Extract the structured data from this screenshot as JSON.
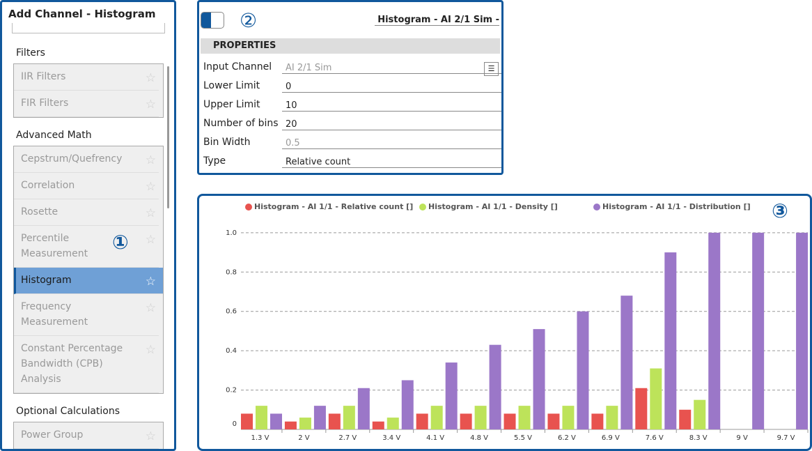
{
  "left_panel": {
    "title": "Add Channel - Histogram",
    "marker": "①",
    "selected_item": "Histogram",
    "groups": [
      {
        "title": "Filters",
        "items": [
          "IIR Filters",
          "FIR Filters"
        ]
      },
      {
        "title": "Advanced Math",
        "items": [
          "Cepstrum/Quefrency",
          "Correlation",
          "Rosette",
          "Percentile Measurement",
          "Histogram",
          "Frequency Measurement",
          "Constant Percentage Bandwidth (CPB) Analysis"
        ]
      },
      {
        "title": "Optional Calculations",
        "items": [
          "Power Group"
        ]
      }
    ]
  },
  "properties_panel": {
    "marker": "②",
    "header": "Histogram - AI 2/1 Sim -",
    "section": "PROPERTIES",
    "rows": [
      {
        "label": "Input Channel",
        "value": "AI 2/1 Sim",
        "disabled": true
      },
      {
        "label": "Lower Limit",
        "value": "0",
        "disabled": false
      },
      {
        "label": "Upper Limit",
        "value": "10",
        "disabled": false
      },
      {
        "label": "Number of bins",
        "value": "20",
        "disabled": false
      },
      {
        "label": "Bin Width",
        "value": "0.5",
        "disabled": true
      },
      {
        "label": "Type",
        "value": "Relative count",
        "disabled": false
      }
    ]
  },
  "chart_data": {
    "type": "bar",
    "marker": "③",
    "categories": [
      "1.3 V",
      "2 V",
      "2.7 V",
      "3.4 V",
      "4.1 V",
      "4.8 V",
      "5.5 V",
      "6.2 V",
      "6.9 V",
      "7.6 V",
      "8.3 V",
      "9 V",
      "9.7 V"
    ],
    "series": [
      {
        "name": "Histogram - AI 1/1 - Relative count []",
        "color": "#e8534f",
        "values": [
          0.08,
          0.04,
          0.08,
          0.04,
          0.08,
          0.08,
          0.08,
          0.08,
          0.08,
          0.21,
          0.1,
          0,
          0
        ]
      },
      {
        "name": "Histogram - AI 1/1 - Density []",
        "color": "#bde35a",
        "values": [
          0.12,
          0.06,
          0.12,
          0.06,
          0.12,
          0.12,
          0.12,
          0.12,
          0.12,
          0.31,
          0.15,
          0,
          0
        ]
      },
      {
        "name": "Histogram - AI 1/1 - Distribution []",
        "color": "#9b77c8",
        "values": [
          0.08,
          0.12,
          0.21,
          0.25,
          0.34,
          0.43,
          0.51,
          0.6,
          0.68,
          0.9,
          1,
          1,
          1
        ]
      }
    ],
    "ylim": [
      0,
      1.12
    ],
    "yticks": [
      0,
      0.2,
      0.4,
      0.6,
      0.8,
      {
        "value": 1,
        "label": "1.0"
      }
    ],
    "grid": true
  }
}
